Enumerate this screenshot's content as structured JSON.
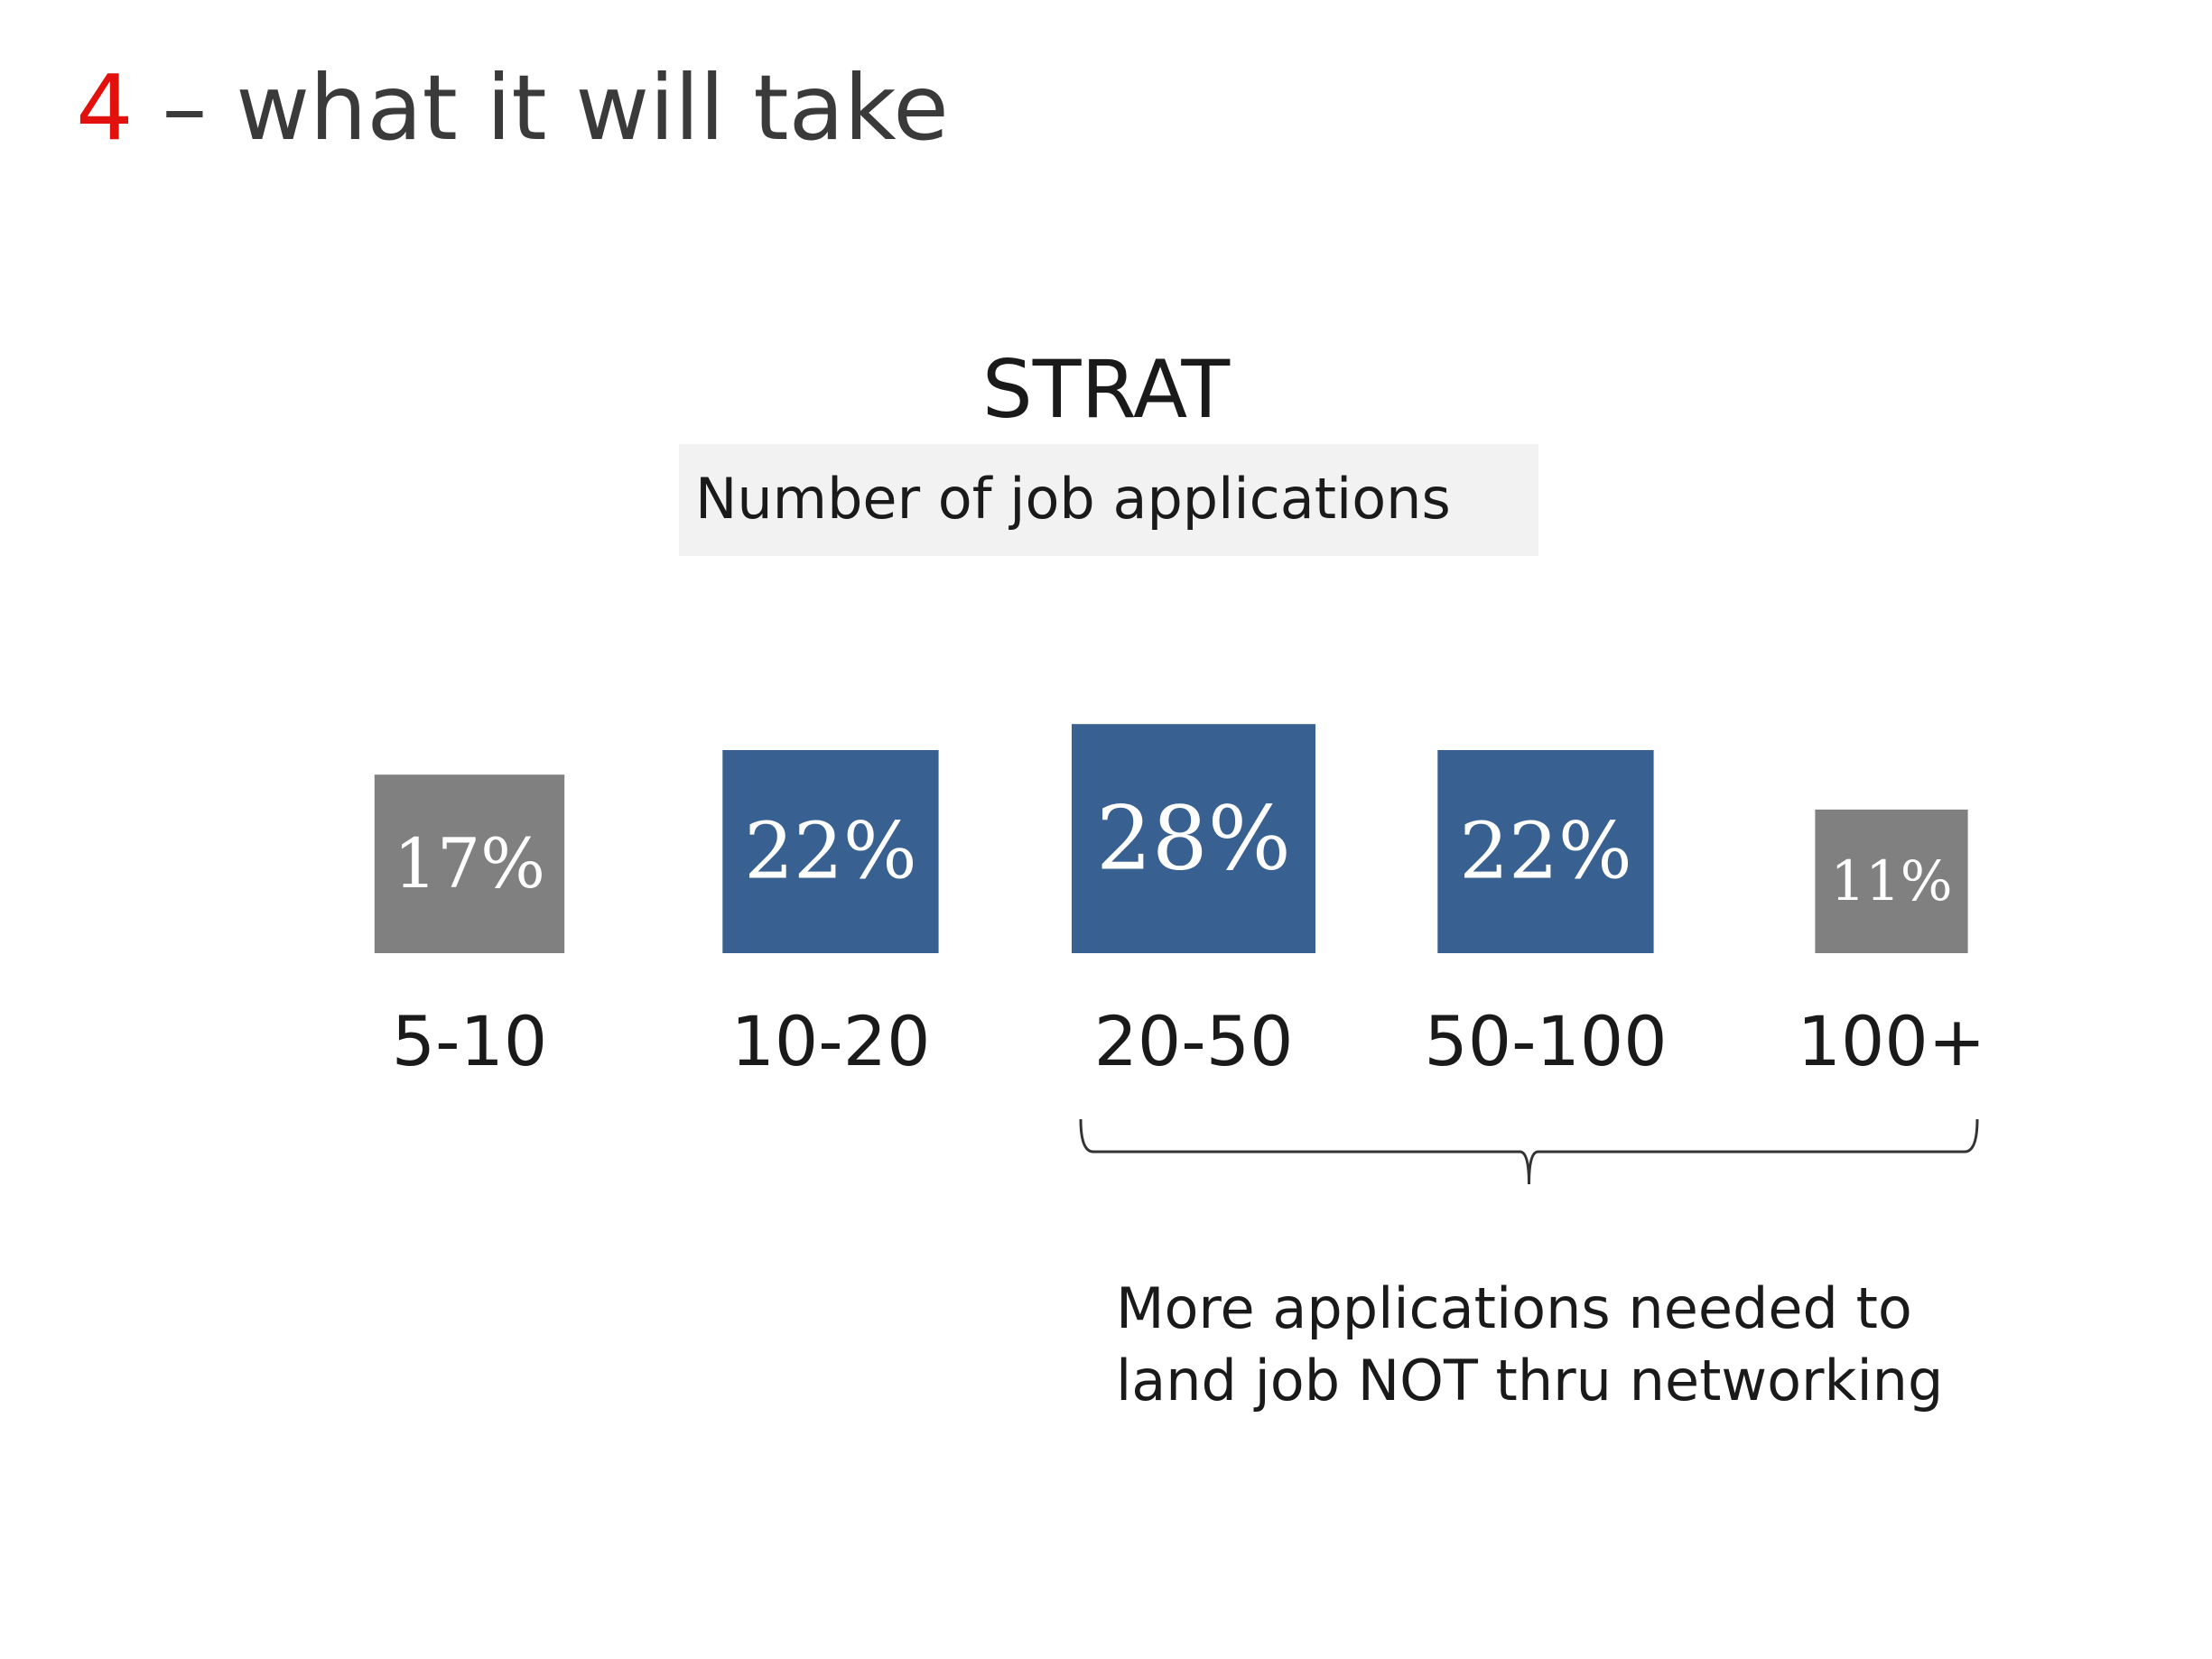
{
  "slide": {
    "number": "4",
    "title_rest": "– what it will take"
  },
  "chart_data": {
    "type": "bar",
    "title": "STRAT",
    "subtitle": "Number of job applications",
    "categories": [
      "5-10",
      "10-20",
      "20-50",
      "50-100",
      "100+"
    ],
    "values": [
      17,
      22,
      28,
      22,
      11
    ],
    "value_labels": [
      "17%",
      "22%",
      "28%",
      "22%",
      "11%"
    ],
    "highlighted": [
      false,
      true,
      true,
      true,
      false
    ],
    "xlabel": "",
    "ylabel": "",
    "legend": "none",
    "grid": false
  },
  "annotation": {
    "brace_categories": [
      "20-50",
      "100+"
    ],
    "lines": [
      "More applications needed to",
      "land job NOT thru networking"
    ]
  },
  "colors": {
    "accent": "#e3110e",
    "highlight": "#386090",
    "muted": "#808080",
    "text": "#1a1a1a"
  }
}
